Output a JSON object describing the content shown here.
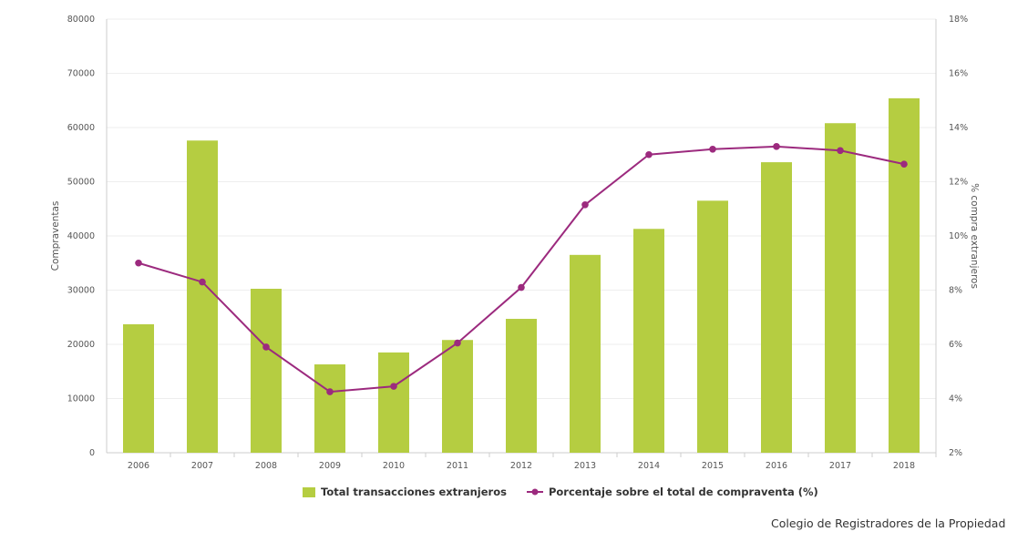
{
  "chart_data": {
    "type": "bar+line",
    "categories": [
      "2006",
      "2007",
      "2008",
      "2009",
      "2010",
      "2011",
      "2012",
      "2013",
      "2014",
      "2015",
      "2016",
      "2017",
      "2018"
    ],
    "series": [
      {
        "name": "Total transacciones extranjeros",
        "type": "bar",
        "axis": "left",
        "color": "#b5cd41",
        "values": [
          23700,
          57600,
          30250,
          16300,
          18500,
          20800,
          24700,
          36500,
          41300,
          46500,
          53600,
          60800,
          65400
        ]
      },
      {
        "name": "Porcentaje sobre el total de compraventa (%)",
        "type": "line",
        "axis": "right",
        "color": "#9c2a7e",
        "values": [
          9.0,
          8.3,
          5.9,
          4.25,
          4.45,
          6.05,
          8.1,
          11.15,
          13.0,
          13.2,
          13.3,
          13.15,
          12.65
        ]
      }
    ],
    "ylabel": "Compraventas",
    "y2label": "% compra extranjeros",
    "ylim": [
      0,
      80000
    ],
    "y2lim": [
      2,
      18
    ],
    "yticks": [
      "0",
      "10000",
      "20000",
      "30000",
      "40000",
      "50000",
      "60000",
      "70000",
      "80000"
    ],
    "y2ticks": [
      "2%",
      "4%",
      "6%",
      "8%",
      "10%",
      "12%",
      "14%",
      "16%",
      "18%"
    ],
    "grid": true,
    "legend": "bottom"
  },
  "source": "Colegio de Registradores de la Propiedad"
}
